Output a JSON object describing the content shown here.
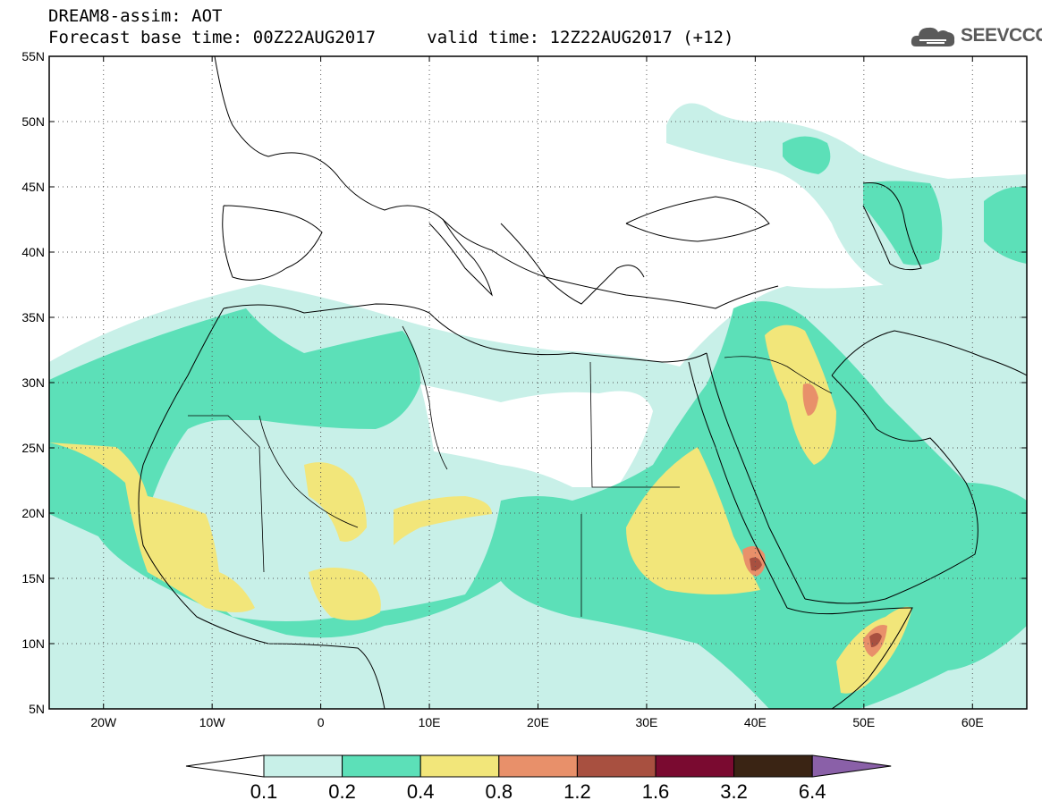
{
  "header": {
    "line1": "DREAM8-assim: AOT",
    "line2_base": "Forecast base time: 00Z22AUG2017",
    "line2_valid": "valid time: 12Z22AUG2017 (+12)"
  },
  "logo": {
    "icon": "cloud-icon",
    "text": "SEEVCCC"
  },
  "map": {
    "lon_range": [
      -25,
      65
    ],
    "lat_range": [
      5,
      55
    ],
    "lat_labels": [
      "55N",
      "50N",
      "45N",
      "40N",
      "35N",
      "30N",
      "25N",
      "20N",
      "15N",
      "10N",
      "5N"
    ],
    "lat_values": [
      55,
      50,
      45,
      40,
      35,
      30,
      25,
      20,
      15,
      10,
      5
    ],
    "lon_labels": [
      "20W",
      "10W",
      "0",
      "10E",
      "20E",
      "30E",
      "40E",
      "50E",
      "60E"
    ],
    "lon_values": [
      -20,
      -10,
      0,
      10,
      20,
      30,
      40,
      50,
      60
    ],
    "gridlines": "dotted"
  },
  "colorbar": {
    "levels": [
      "0.1",
      "0.2",
      "0.4",
      "0.8",
      "1.2",
      "1.6",
      "3.2",
      "6.4"
    ],
    "colors": [
      "#ffffff",
      "#c8f0e8",
      "#5ce0b8",
      "#f2e67a",
      "#e8906a",
      "#a85040",
      "#7a0a30",
      "#3a2414",
      "#8a60a8"
    ]
  }
}
